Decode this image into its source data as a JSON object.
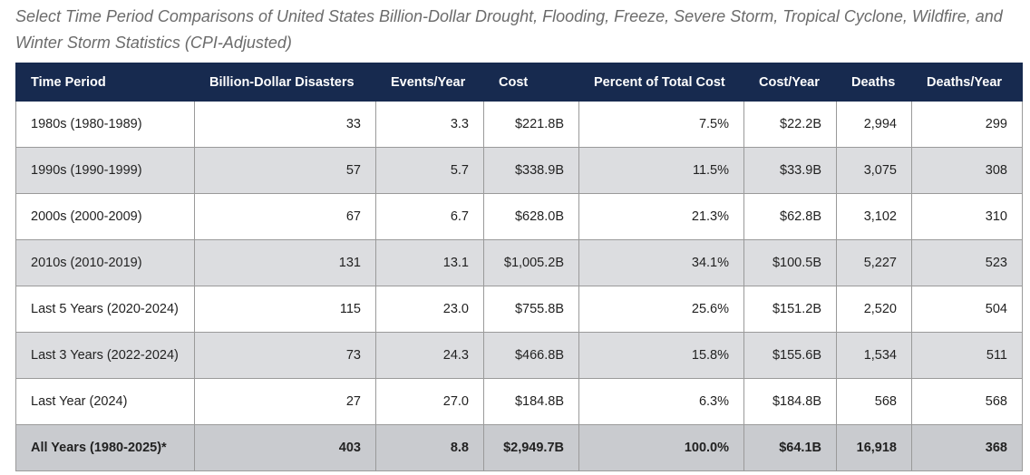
{
  "caption": "Select Time Period Comparisons of United States Billion-Dollar Drought, Flooding, Freeze, Severe Storm, Tropical Cyclone, Wildfire, and Winter Storm Statistics (CPI-Adjusted)",
  "table": {
    "headers": [
      "Time Period",
      "Billion-Dollar Disasters",
      "Events/Year",
      "Cost",
      "Percent of Total Cost",
      "Cost/Year",
      "Deaths",
      "Deaths/Year"
    ],
    "rows": [
      [
        "1980s (1980-1989)",
        "33",
        "3.3",
        "$221.8B",
        "7.5%",
        "$22.2B",
        "2,994",
        "299"
      ],
      [
        "1990s (1990-1999)",
        "57",
        "5.7",
        "$338.9B",
        "11.5%",
        "$33.9B",
        "3,075",
        "308"
      ],
      [
        "2000s (2000-2009)",
        "67",
        "6.7",
        "$628.0B",
        "21.3%",
        "$62.8B",
        "3,102",
        "310"
      ],
      [
        "2010s (2010-2019)",
        "131",
        "13.1",
        "$1,005.2B",
        "34.1%",
        "$100.5B",
        "5,227",
        "523"
      ],
      [
        "Last 5 Years (2020-2024)",
        "115",
        "23.0",
        "$755.8B",
        "25.6%",
        "$151.2B",
        "2,520",
        "504"
      ],
      [
        "Last 3 Years (2022-2024)",
        "73",
        "24.3",
        "$466.8B",
        "15.8%",
        "$155.6B",
        "1,534",
        "511"
      ],
      [
        "Last Year (2024)",
        "27",
        "27.0",
        "$184.8B",
        "6.3%",
        "$184.8B",
        "568",
        "568"
      ]
    ],
    "total": [
      "All Years (1980-2025)*",
      "403",
      "8.8",
      "$2,949.7B",
      "100.0%",
      "$64.1B",
      "16,918",
      "368"
    ]
  }
}
